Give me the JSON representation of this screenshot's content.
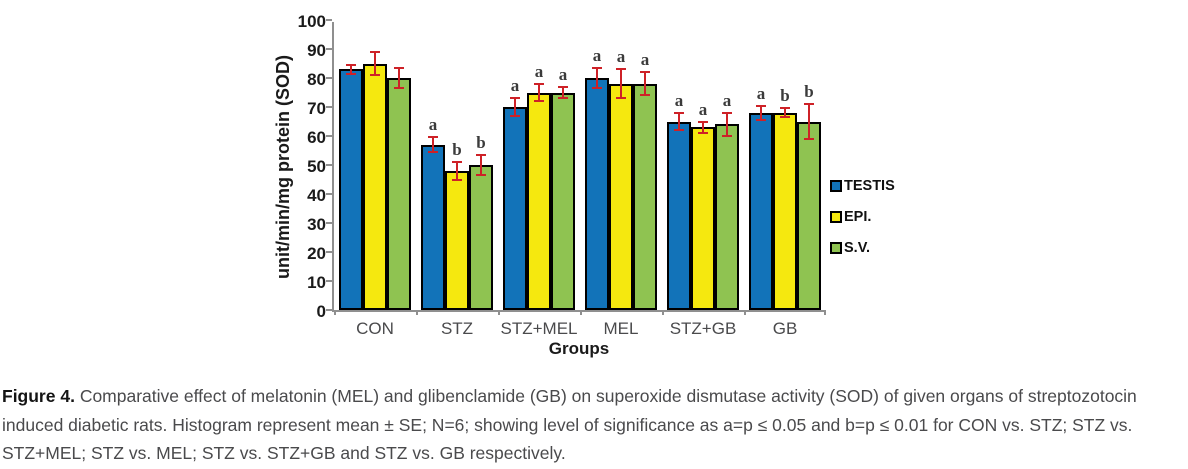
{
  "chart_data": {
    "type": "bar",
    "title": "",
    "xlabel": "Groups",
    "ylabel": "unit/min/mg protein (SOD)",
    "ylim": [
      0,
      100
    ],
    "ytick_step": 10,
    "grid": false,
    "legend_position": "right",
    "error_bars": "mean ± SE",
    "error_bar_color": "#CE2127",
    "axis_color": "#8F8F8F",
    "categories": [
      "CON",
      "STZ",
      "STZ+MEL",
      "MEL",
      "STZ+GB",
      "GB"
    ],
    "series": [
      {
        "name": "TESTIS",
        "color": "#1273B9",
        "values": [
          83,
          57,
          70,
          80,
          65,
          68
        ],
        "errors": [
          1.5,
          2.5,
          3,
          3.5,
          3,
          2.5
        ],
        "sig": [
          "",
          "a",
          "a",
          "a",
          "a",
          "a"
        ]
      },
      {
        "name": "EPI.",
        "color": "#F5E80F",
        "values": [
          85,
          48,
          75,
          78,
          63,
          68
        ],
        "errors": [
          4,
          3,
          3,
          5,
          2,
          1.5
        ],
        "sig": [
          "",
          "b",
          "a",
          "a",
          "a",
          "b"
        ]
      },
      {
        "name": "S.V.",
        "color": "#8FC351",
        "values": [
          80,
          50,
          75,
          78,
          64,
          65
        ],
        "errors": [
          3.5,
          3.5,
          2,
          4,
          4,
          6
        ],
        "sig": [
          "",
          "b",
          "a",
          "a",
          "a",
          "b"
        ]
      }
    ]
  },
  "caption": {
    "label": "Figure 4.",
    "text": "Comparative effect of melatonin (MEL) and glibenclamide (GB) on superoxide dismutase activity (SOD) of given organs of streptozotocin induced diabetic rats. Histogram represent mean ± SE; N=6; showing level of significance as a=p ≤ 0.05 and b=p ≤ 0.01 for CON vs. STZ; STZ vs. STZ+MEL; STZ vs. MEL; STZ vs. STZ+GB and STZ vs. GB respectively."
  }
}
